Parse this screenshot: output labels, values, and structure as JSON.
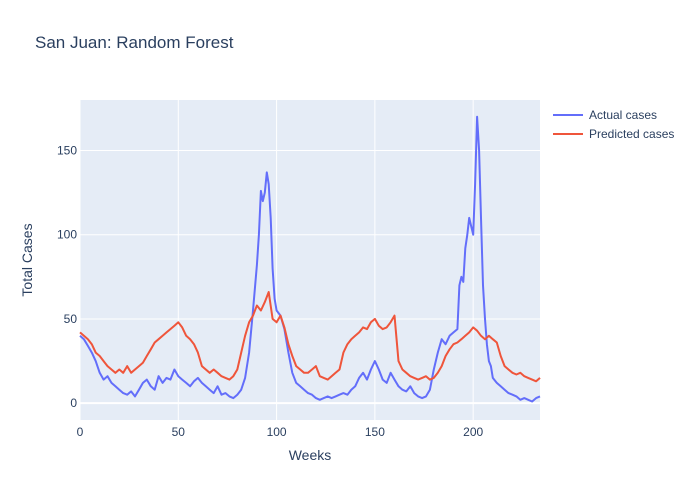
{
  "chart_data": {
    "type": "line",
    "title": "San Juan: Random Forest",
    "xlabel": "Weeks",
    "ylabel": "Total Cases",
    "xlim": [
      0,
      234
    ],
    "ylim": [
      -10,
      180
    ],
    "xticks": [
      0,
      50,
      100,
      150,
      200
    ],
    "yticks": [
      0,
      50,
      100,
      150
    ],
    "grid": true,
    "legend_position": "top-right",
    "plot_bgcolor": "#E5ECF6",
    "series": [
      {
        "name": "Actual cases",
        "color": "#636EFA",
        "x": [
          0,
          2,
          4,
          6,
          8,
          10,
          12,
          14,
          16,
          18,
          20,
          22,
          24,
          26,
          28,
          30,
          32,
          34,
          36,
          38,
          40,
          42,
          44,
          46,
          48,
          50,
          52,
          54,
          56,
          58,
          60,
          62,
          64,
          66,
          68,
          70,
          72,
          74,
          76,
          78,
          80,
          82,
          84,
          86,
          88,
          90,
          91,
          92,
          93,
          94,
          95,
          96,
          97,
          98,
          99,
          100,
          102,
          104,
          106,
          108,
          110,
          112,
          114,
          116,
          118,
          120,
          122,
          124,
          126,
          128,
          130,
          132,
          134,
          136,
          138,
          140,
          142,
          144,
          146,
          148,
          150,
          152,
          154,
          156,
          158,
          160,
          162,
          164,
          166,
          168,
          170,
          172,
          174,
          176,
          178,
          180,
          182,
          184,
          186,
          188,
          190,
          192,
          193,
          194,
          195,
          196,
          197,
          198,
          199,
          200,
          201,
          202,
          203,
          204,
          205,
          206,
          207,
          208,
          209,
          210,
          212,
          214,
          216,
          218,
          220,
          222,
          224,
          226,
          228,
          230,
          232,
          234
        ],
        "values": [
          40,
          38,
          34,
          30,
          25,
          18,
          14,
          16,
          12,
          10,
          8,
          6,
          5,
          7,
          4,
          8,
          12,
          14,
          10,
          8,
          16,
          12,
          15,
          14,
          20,
          16,
          14,
          12,
          10,
          13,
          15,
          12,
          10,
          8,
          6,
          10,
          5,
          6,
          4,
          3,
          5,
          8,
          15,
          30,
          55,
          82,
          100,
          126,
          120,
          125,
          137,
          130,
          110,
          80,
          62,
          55,
          52,
          44,
          30,
          18,
          12,
          10,
          8,
          6,
          5,
          3,
          2,
          3,
          4,
          3,
          4,
          5,
          6,
          5,
          8,
          10,
          15,
          18,
          14,
          20,
          25,
          20,
          14,
          12,
          18,
          14,
          10,
          8,
          7,
          10,
          6,
          4,
          3,
          4,
          8,
          20,
          30,
          38,
          35,
          40,
          42,
          44,
          70,
          75,
          72,
          92,
          100,
          110,
          105,
          100,
          130,
          170,
          150,
          110,
          70,
          50,
          35,
          25,
          22,
          15,
          12,
          10,
          8,
          6,
          5,
          4,
          2,
          3,
          2,
          1,
          3,
          4
        ],
        "width": 2
      },
      {
        "name": "Predicted cases",
        "color": "#EF553B",
        "x": [
          0,
          2,
          4,
          6,
          8,
          10,
          12,
          14,
          16,
          18,
          20,
          22,
          24,
          26,
          28,
          30,
          32,
          34,
          36,
          38,
          40,
          42,
          44,
          46,
          48,
          50,
          52,
          54,
          56,
          58,
          60,
          62,
          64,
          66,
          68,
          70,
          72,
          74,
          76,
          78,
          80,
          82,
          84,
          86,
          88,
          90,
          92,
          94,
          96,
          98,
          100,
          102,
          104,
          106,
          108,
          110,
          112,
          114,
          116,
          118,
          120,
          122,
          124,
          126,
          128,
          130,
          132,
          134,
          136,
          138,
          140,
          142,
          144,
          146,
          148,
          150,
          152,
          154,
          156,
          158,
          160,
          162,
          164,
          166,
          168,
          170,
          172,
          174,
          176,
          178,
          180,
          182,
          184,
          186,
          188,
          190,
          192,
          194,
          196,
          198,
          200,
          202,
          204,
          206,
          208,
          210,
          212,
          214,
          216,
          218,
          220,
          222,
          224,
          226,
          228,
          230,
          232,
          234
        ],
        "values": [
          42,
          40,
          38,
          35,
          30,
          28,
          25,
          22,
          20,
          18,
          20,
          18,
          22,
          18,
          20,
          22,
          24,
          28,
          32,
          36,
          38,
          40,
          42,
          44,
          46,
          48,
          45,
          40,
          38,
          35,
          30,
          22,
          20,
          18,
          20,
          18,
          16,
          15,
          14,
          16,
          20,
          30,
          40,
          48,
          52,
          58,
          55,
          60,
          66,
          50,
          48,
          52,
          45,
          35,
          28,
          22,
          20,
          18,
          18,
          20,
          22,
          16,
          15,
          14,
          16,
          18,
          20,
          30,
          35,
          38,
          40,
          42,
          45,
          44,
          48,
          50,
          46,
          44,
          45,
          48,
          52,
          25,
          20,
          18,
          16,
          15,
          14,
          15,
          16,
          14,
          15,
          18,
          22,
          28,
          32,
          35,
          36,
          38,
          40,
          42,
          45,
          43,
          40,
          38,
          40,
          38,
          36,
          28,
          22,
          20,
          18,
          17,
          18,
          16,
          15,
          14,
          13,
          15
        ],
        "width": 2
      }
    ]
  }
}
